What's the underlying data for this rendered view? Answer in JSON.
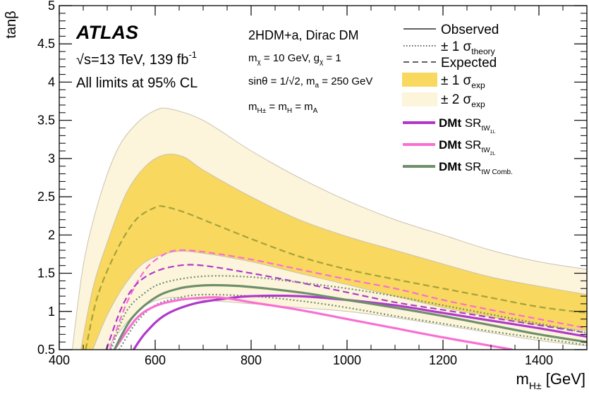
{
  "chart_data": {
    "type": "line",
    "xlabel": "m",
    "xlabel_sub": "H±",
    "xlabel_unit": " [GeV]",
    "ylabel": "tanβ",
    "xlim": [
      400,
      1500
    ],
    "ylim": [
      0.5,
      5
    ],
    "x_ticks": [
      400,
      600,
      800,
      1000,
      1200,
      1400
    ],
    "y_ticks": [
      0.5,
      1,
      1.5,
      2,
      2.5,
      3,
      3.5,
      4,
      4.5,
      5
    ],
    "y_tick_labels": [
      "0.5",
      "1",
      "1.5",
      "2",
      "2.5",
      "3",
      "3.5",
      "4",
      "4.5",
      "5"
    ],
    "legend_position": "top-right",
    "annotations": {
      "atlas": "ATLAS",
      "energy": "√s=13 TeV, 139 fb",
      "energy_sup": "-1",
      "cl": "All limits at 95% CL",
      "model": "2HDM+a, Dirac DM",
      "param1_a": "m",
      "param1_a_sub": "χ",
      "param1_b": " = 10 GeV, g",
      "param1_b_sub": "χ",
      "param1_c": " = 1",
      "param2_a": "sinθ = 1/√2, m",
      "param2_a_sub": "a",
      "param2_b": " = 250 GeV",
      "param3_a": "m",
      "param3_a_sub": "H±",
      "param3_b": " = m",
      "param3_b_sub": "H",
      "param3_c": " = m",
      "param3_c_sub": "A"
    },
    "legend": {
      "observed": "Observed",
      "theory_a": "± 1 σ",
      "theory_sub": "theory",
      "expected": "Expected",
      "exp1_a": "± 1 σ",
      "exp1_sub": "exp",
      "exp2_a": "± 2 σ",
      "exp2_sub": "exp",
      "sr1_bold": "DMt",
      "sr1_a": " SR",
      "sr1_sub": "tW",
      "sr1_subsub": "1L",
      "sr2_bold": "DMt",
      "sr2_a": " SR",
      "sr2_sub": "tW",
      "sr2_subsub": "2L",
      "sr3_bold": "DMt",
      "sr3_a": " SR",
      "sr3_sub": "tW Comb.",
      "sr3_subsub": ""
    },
    "colors": {
      "band1": "#f8d85f",
      "band2": "#fcf5dc",
      "expected_comb": "#a5a13c",
      "sr1": "#b039cc",
      "sr2": "#f96fd2",
      "comb": "#6f8f6b",
      "band_edge": "#c9c2b0"
    },
    "series": [
      {
        "id": "comb_band2",
        "kind": "band",
        "color": "band2",
        "upper": [
          [
            427,
            0.5
          ],
          [
            450,
            1.6
          ],
          [
            480,
            2.4
          ],
          [
            520,
            3.1
          ],
          [
            560,
            3.45
          ],
          [
            600,
            3.63
          ],
          [
            630,
            3.65
          ],
          [
            700,
            3.5
          ],
          [
            800,
            3.1
          ],
          [
            900,
            2.75
          ],
          [
            1000,
            2.45
          ],
          [
            1100,
            2.2
          ],
          [
            1200,
            2.0
          ],
          [
            1300,
            1.8
          ],
          [
            1400,
            1.65
          ],
          [
            1500,
            1.55
          ]
        ],
        "lower": [
          [
            498,
            0.5
          ],
          [
            540,
            0.85
          ],
          [
            580,
            1.08
          ],
          [
            630,
            1.18
          ],
          [
            700,
            1.15
          ],
          [
            800,
            1.1
          ],
          [
            900,
            1.05
          ],
          [
            1000,
            1.0
          ],
          [
            1100,
            0.92
          ],
          [
            1200,
            0.82
          ],
          [
            1300,
            0.72
          ],
          [
            1400,
            0.62
          ],
          [
            1500,
            0.55
          ]
        ]
      },
      {
        "id": "comb_band1",
        "kind": "band",
        "color": "band1",
        "upper": [
          [
            445,
            0.5
          ],
          [
            470,
            1.3
          ],
          [
            500,
            1.9
          ],
          [
            540,
            2.55
          ],
          [
            580,
            2.9
          ],
          [
            620,
            3.05
          ],
          [
            660,
            3.02
          ],
          [
            700,
            2.85
          ],
          [
            800,
            2.5
          ],
          [
            900,
            2.2
          ],
          [
            1000,
            1.98
          ],
          [
            1100,
            1.8
          ],
          [
            1200,
            1.62
          ],
          [
            1300,
            1.45
          ],
          [
            1400,
            1.33
          ],
          [
            1500,
            1.22
          ]
        ],
        "lower": [
          [
            470,
            0.5
          ],
          [
            500,
            0.95
          ],
          [
            540,
            1.38
          ],
          [
            580,
            1.65
          ],
          [
            640,
            1.78
          ],
          [
            700,
            1.76
          ],
          [
            800,
            1.65
          ],
          [
            900,
            1.5
          ],
          [
            1000,
            1.35
          ],
          [
            1100,
            1.2
          ],
          [
            1200,
            1.05
          ],
          [
            1300,
            0.93
          ],
          [
            1400,
            0.82
          ],
          [
            1500,
            0.75
          ]
        ]
      },
      {
        "id": "comb_expected",
        "kind": "line",
        "color": "expected_comb",
        "dash": "9,5",
        "width": 2.2,
        "points": [
          [
            455,
            0.5
          ],
          [
            480,
            1.2
          ],
          [
            520,
            1.8
          ],
          [
            560,
            2.2
          ],
          [
            600,
            2.36
          ],
          [
            620,
            2.37
          ],
          [
            660,
            2.3
          ],
          [
            700,
            2.2
          ],
          [
            800,
            1.95
          ],
          [
            900,
            1.72
          ],
          [
            1000,
            1.55
          ],
          [
            1100,
            1.42
          ],
          [
            1200,
            1.3
          ],
          [
            1300,
            1.18
          ],
          [
            1400,
            1.06
          ],
          [
            1500,
            0.98
          ]
        ]
      },
      {
        "id": "sr2_expected",
        "kind": "line",
        "color": "sr2",
        "dash": "9,5",
        "width": 2.2,
        "points": [
          [
            505,
            0.5
          ],
          [
            540,
            1.1
          ],
          [
            580,
            1.55
          ],
          [
            620,
            1.75
          ],
          [
            650,
            1.8
          ],
          [
            700,
            1.78
          ],
          [
            800,
            1.68
          ],
          [
            900,
            1.55
          ],
          [
            1000,
            1.42
          ],
          [
            1100,
            1.3
          ],
          [
            1200,
            1.15
          ],
          [
            1300,
            1.02
          ],
          [
            1400,
            0.9
          ],
          [
            1500,
            0.78
          ]
        ]
      },
      {
        "id": "sr1_expected",
        "kind": "line",
        "color": "sr1",
        "dash": "9,5",
        "width": 2.2,
        "points": [
          [
            498,
            0.5
          ],
          [
            530,
            1.05
          ],
          [
            560,
            1.35
          ],
          [
            600,
            1.52
          ],
          [
            650,
            1.6
          ],
          [
            700,
            1.6
          ],
          [
            800,
            1.5
          ],
          [
            900,
            1.38
          ],
          [
            1000,
            1.25
          ],
          [
            1100,
            1.12
          ],
          [
            1200,
            1.02
          ],
          [
            1300,
            0.92
          ],
          [
            1400,
            0.82
          ],
          [
            1500,
            0.72
          ]
        ]
      },
      {
        "id": "theory_up",
        "kind": "line",
        "color": "comb",
        "dash": "2,3",
        "width": 2.2,
        "points": [
          [
            508,
            0.5
          ],
          [
            540,
            1.0
          ],
          [
            580,
            1.25
          ],
          [
            620,
            1.38
          ],
          [
            700,
            1.46
          ],
          [
            800,
            1.45
          ],
          [
            900,
            1.38
          ],
          [
            1000,
            1.3
          ],
          [
            1100,
            1.2
          ],
          [
            1200,
            1.08
          ],
          [
            1300,
            0.96
          ],
          [
            1400,
            0.84
          ],
          [
            1500,
            0.72
          ]
        ]
      },
      {
        "id": "theory_down",
        "kind": "line",
        "color": "comb",
        "dash": "2,3",
        "width": 2.2,
        "points": [
          [
            525,
            0.5
          ],
          [
            560,
            0.85
          ],
          [
            600,
            1.08
          ],
          [
            650,
            1.18
          ],
          [
            700,
            1.22
          ],
          [
            800,
            1.2
          ],
          [
            900,
            1.14
          ],
          [
            1000,
            1.05
          ],
          [
            1100,
            0.94
          ],
          [
            1200,
            0.84
          ],
          [
            1300,
            0.74
          ],
          [
            1400,
            0.65
          ],
          [
            1500,
            0.56
          ]
        ]
      },
      {
        "id": "sr1_observed",
        "kind": "line",
        "color": "sr1",
        "width": 3.2,
        "points": [
          [
            555,
            0.5
          ],
          [
            580,
            0.72
          ],
          [
            620,
            0.95
          ],
          [
            680,
            1.1
          ],
          [
            750,
            1.17
          ],
          [
            800,
            1.2
          ],
          [
            900,
            1.2
          ],
          [
            1000,
            1.15
          ],
          [
            1100,
            1.08
          ],
          [
            1200,
            0.98
          ],
          [
            1300,
            0.88
          ],
          [
            1400,
            0.78
          ],
          [
            1500,
            0.67
          ]
        ]
      },
      {
        "id": "sr2_observed",
        "kind": "line",
        "color": "sr2",
        "width": 3.2,
        "points": [
          [
            515,
            0.5
          ],
          [
            560,
            0.9
          ],
          [
            600,
            1.07
          ],
          [
            650,
            1.15
          ],
          [
            700,
            1.18
          ],
          [
            740,
            1.18
          ],
          [
            800,
            1.12
          ],
          [
            900,
            1.02
          ],
          [
            1000,
            0.9
          ],
          [
            1100,
            0.78
          ],
          [
            1200,
            0.66
          ],
          [
            1300,
            0.55
          ],
          [
            1345,
            0.5
          ]
        ]
      },
      {
        "id": "comb_observed",
        "kind": "line",
        "color": "comb",
        "width": 3.2,
        "points": [
          [
            515,
            0.5
          ],
          [
            550,
            0.9
          ],
          [
            600,
            1.18
          ],
          [
            650,
            1.3
          ],
          [
            700,
            1.34
          ],
          [
            750,
            1.34
          ],
          [
            800,
            1.32
          ],
          [
            900,
            1.25
          ],
          [
            1000,
            1.15
          ],
          [
            1100,
            1.05
          ],
          [
            1200,
            0.94
          ],
          [
            1300,
            0.82
          ],
          [
            1400,
            0.7
          ],
          [
            1500,
            0.6
          ]
        ]
      }
    ]
  }
}
